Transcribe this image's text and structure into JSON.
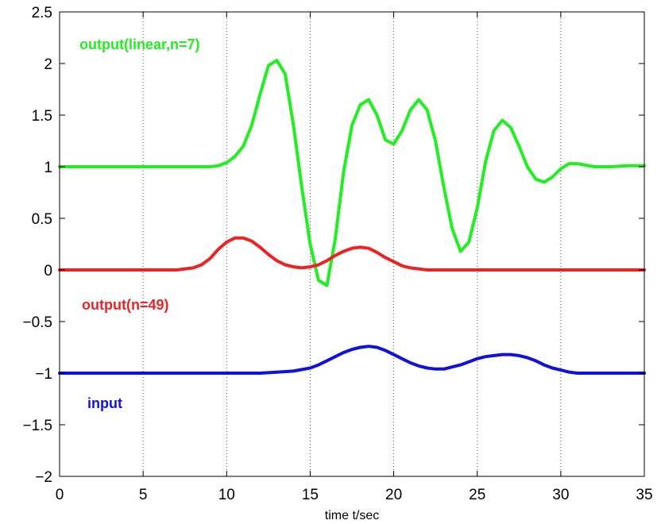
{
  "chart_data": {
    "type": "line",
    "title": "",
    "xlabel": "time t/sec",
    "ylabel": "",
    "xlim": [
      0,
      35
    ],
    "ylim": [
      -2,
      2.5
    ],
    "x_ticks": [
      0,
      5,
      10,
      15,
      20,
      25,
      30,
      35
    ],
    "x_tick_labels": [
      "0",
      "5",
      "10",
      "15",
      "20",
      "25",
      "30",
      "35"
    ],
    "y_ticks": [
      -2,
      -1.5,
      -1,
      -0.5,
      0,
      0.5,
      1,
      1.5,
      2,
      2.5
    ],
    "y_tick_labels": [
      "−2",
      "−1.5",
      "−1",
      "−0.5",
      "0",
      "0.5",
      "1",
      "1.5",
      "2",
      "2.5"
    ],
    "grid": {
      "vertical": true,
      "horizontal": false,
      "style": "dotted"
    },
    "annotations": [
      {
        "text": "output(linear,n=7)",
        "color": "#22ee22",
        "series": "output(linear,n=7)"
      },
      {
        "text": "output(n=49)",
        "color": "#ee2222",
        "series": "output(n=49)"
      },
      {
        "text": "input",
        "color": "#1111dd",
        "series": "input"
      }
    ],
    "series": [
      {
        "name": "output(linear,n=7)",
        "color": "#22ee22",
        "x": [
          0,
          2,
          4,
          6,
          8,
          9,
          9.5,
          10,
          10.5,
          11,
          11.5,
          12,
          12.5,
          13,
          13.5,
          14,
          14.5,
          15,
          15.5,
          16,
          16.5,
          17,
          17.5,
          18,
          18.5,
          19,
          19.5,
          20,
          20.5,
          21,
          21.5,
          22,
          22.5,
          23,
          23.5,
          24,
          24.5,
          25,
          25.5,
          26,
          26.5,
          27,
          27.5,
          28,
          28.5,
          29,
          29.5,
          30,
          30.5,
          31,
          32,
          33,
          34,
          35
        ],
        "values": [
          1,
          1,
          1,
          1,
          1,
          1.0,
          1.01,
          1.04,
          1.1,
          1.2,
          1.4,
          1.7,
          1.98,
          2.03,
          1.9,
          1.4,
          0.8,
          0.25,
          -0.1,
          -0.15,
          0.3,
          0.95,
          1.4,
          1.6,
          1.65,
          1.5,
          1.26,
          1.22,
          1.35,
          1.55,
          1.65,
          1.55,
          1.25,
          0.8,
          0.4,
          0.18,
          0.27,
          0.6,
          1.05,
          1.35,
          1.45,
          1.38,
          1.2,
          1.0,
          0.88,
          0.85,
          0.9,
          0.98,
          1.03,
          1.03,
          1.0,
          1.0,
          1.01,
          1.01
        ]
      },
      {
        "name": "output(n=49)",
        "color": "#ee2222",
        "x": [
          0,
          2,
          4,
          6,
          7,
          8,
          8.5,
          9,
          9.5,
          10,
          10.5,
          11,
          11.5,
          12,
          12.5,
          13,
          13.5,
          14,
          14.5,
          15,
          15.5,
          16,
          16.5,
          17,
          17.5,
          18,
          18.5,
          19,
          19.5,
          20,
          20.5,
          21,
          21.5,
          22,
          23,
          24,
          26,
          28,
          30,
          32,
          35
        ],
        "values": [
          0,
          0,
          0,
          0,
          0,
          0.02,
          0.05,
          0.11,
          0.2,
          0.27,
          0.31,
          0.31,
          0.28,
          0.22,
          0.15,
          0.09,
          0.05,
          0.03,
          0.02,
          0.03,
          0.05,
          0.09,
          0.14,
          0.18,
          0.21,
          0.22,
          0.21,
          0.17,
          0.12,
          0.08,
          0.04,
          0.02,
          0.01,
          0.0,
          0,
          0,
          0,
          0,
          0,
          0,
          0
        ]
      },
      {
        "name": "input",
        "color": "#1111dd",
        "x": [
          0,
          2,
          4,
          6,
          8,
          10,
          12,
          13,
          14,
          15,
          15.5,
          16,
          16.5,
          17,
          17.5,
          18,
          18.5,
          19,
          19.5,
          20,
          20.5,
          21,
          21.5,
          22,
          22.5,
          23,
          23.5,
          24,
          24.5,
          25,
          25.5,
          26,
          26.5,
          27,
          27.5,
          28,
          28.5,
          29,
          29.5,
          30,
          30.5,
          31,
          32,
          33,
          34,
          35
        ],
        "values": [
          -1,
          -1,
          -1,
          -1,
          -1,
          -1,
          -1,
          -0.99,
          -0.98,
          -0.95,
          -0.92,
          -0.88,
          -0.84,
          -0.8,
          -0.77,
          -0.75,
          -0.74,
          -0.75,
          -0.78,
          -0.82,
          -0.86,
          -0.9,
          -0.93,
          -0.95,
          -0.96,
          -0.96,
          -0.94,
          -0.92,
          -0.89,
          -0.86,
          -0.84,
          -0.83,
          -0.82,
          -0.82,
          -0.83,
          -0.85,
          -0.88,
          -0.92,
          -0.95,
          -0.97,
          -0.99,
          -1.0,
          -1,
          -1,
          -1,
          -1
        ]
      }
    ]
  }
}
